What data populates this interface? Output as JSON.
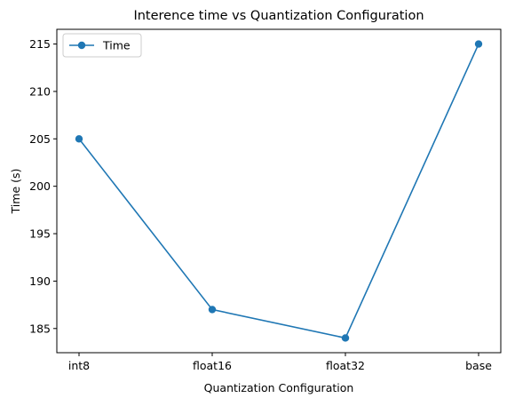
{
  "chart_data": {
    "type": "line",
    "title": "Interence time vs Quantization Configuration",
    "xlabel": "Quantization Configuration",
    "ylabel": "Time (s)",
    "categories": [
      "int8",
      "float16",
      "float32",
      "base"
    ],
    "series": [
      {
        "name": "Time",
        "values": [
          205,
          187,
          184,
          215
        ],
        "color": "#1f77b4",
        "marker": "circle"
      }
    ],
    "ylim": [
      182.45,
      216.55
    ],
    "yticks": [
      185,
      190,
      195,
      200,
      205,
      210,
      215
    ],
    "legend": "top-left",
    "grid": false
  }
}
